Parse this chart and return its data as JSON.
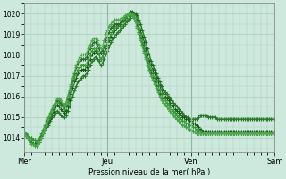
{
  "xlabel": "Pression niveau de la mer( hPa )",
  "ylim": [
    1013.3,
    1020.5
  ],
  "yticks": [
    1014,
    1015,
    1016,
    1017,
    1018,
    1019,
    1020
  ],
  "xtick_labels": [
    "Mer",
    "Jeu",
    "Ven",
    "Sam"
  ],
  "xtick_positions": [
    0,
    48,
    96,
    144
  ],
  "total_points": 145,
  "bg_color": "#cde8dc",
  "grid_color": "#aaccbc",
  "series": [
    {
      "values": [
        1014.2,
        1014.2,
        1014.1,
        1014.0,
        1014.0,
        1013.9,
        1013.9,
        1013.8,
        1013.9,
        1014.0,
        1014.1,
        1014.2,
        1014.4,
        1014.5,
        1014.6,
        1014.8,
        1015.0,
        1015.1,
        1015.2,
        1015.3,
        1015.2,
        1015.1,
        1015.0,
        1015.0,
        1015.1,
        1015.3,
        1015.5,
        1015.8,
        1016.0,
        1016.3,
        1016.5,
        1016.7,
        1016.8,
        1016.9,
        1017.0,
        1017.0,
        1017.1,
        1017.3,
        1017.5,
        1017.7,
        1017.8,
        1017.9,
        1017.8,
        1017.7,
        1017.5,
        1017.6,
        1017.8,
        1018.0,
        1018.2,
        1018.4,
        1018.6,
        1018.8,
        1018.9,
        1019.0,
        1019.1,
        1019.2,
        1019.3,
        1019.4,
        1019.5,
        1019.6,
        1019.7,
        1019.8,
        1019.9,
        1020.0,
        1020.0,
        1019.9,
        1019.7,
        1019.5,
        1019.2,
        1018.9,
        1018.6,
        1018.3,
        1018.0,
        1017.7,
        1017.5,
        1017.3,
        1017.1,
        1016.9,
        1016.7,
        1016.5,
        1016.3,
        1016.2,
        1016.1,
        1016.0,
        1015.9,
        1015.8,
        1015.7,
        1015.6,
        1015.5,
        1015.4,
        1015.3,
        1015.2,
        1015.1,
        1015.0,
        1015.0,
        1014.9,
        1014.9,
        1014.9,
        1014.9,
        1014.9,
        1015.0,
        1015.1,
        1015.1,
        1015.1,
        1015.1,
        1015.1,
        1015.0,
        1015.0,
        1015.0,
        1015.0,
        1015.0,
        1014.9,
        1014.9,
        1014.9,
        1014.9,
        1014.9,
        1014.9,
        1014.9,
        1014.9,
        1014.9,
        1014.9,
        1014.9,
        1014.9,
        1014.9,
        1014.9,
        1014.9,
        1014.9,
        1014.9,
        1014.9,
        1014.9,
        1014.9,
        1014.9,
        1014.9,
        1014.9,
        1014.9,
        1014.9,
        1014.9,
        1014.9,
        1014.9,
        1014.9,
        1014.9,
        1014.9,
        1014.9,
        1014.9,
        1014.9
      ],
      "color": "#2a7a2a",
      "lw": 1.0,
      "ls": "-",
      "marker": "+",
      "ms": 2.5,
      "mew": 0.8
    },
    {
      "values": [
        1014.2,
        1014.1,
        1014.0,
        1013.9,
        1013.8,
        1013.7,
        1013.7,
        1013.7,
        1013.8,
        1013.9,
        1014.1,
        1014.2,
        1014.4,
        1014.6,
        1014.7,
        1014.9,
        1015.1,
        1015.3,
        1015.5,
        1015.6,
        1015.5,
        1015.4,
        1015.3,
        1015.2,
        1015.3,
        1015.5,
        1015.8,
        1016.1,
        1016.4,
        1016.7,
        1016.9,
        1017.1,
        1017.2,
        1017.3,
        1017.3,
        1017.3,
        1017.4,
        1017.6,
        1017.8,
        1018.0,
        1018.1,
        1018.2,
        1018.1,
        1018.0,
        1017.8,
        1017.9,
        1018.1,
        1018.3,
        1018.5,
        1018.7,
        1018.9,
        1019.1,
        1019.2,
        1019.3,
        1019.4,
        1019.5,
        1019.6,
        1019.7,
        1019.8,
        1019.9,
        1020.0,
        1020.1,
        1020.1,
        1020.0,
        1019.9,
        1019.7,
        1019.5,
        1019.2,
        1018.9,
        1018.6,
        1018.3,
        1018.0,
        1017.7,
        1017.5,
        1017.3,
        1017.1,
        1016.9,
        1016.7,
        1016.5,
        1016.3,
        1016.1,
        1016.0,
        1015.9,
        1015.8,
        1015.7,
        1015.6,
        1015.5,
        1015.4,
        1015.3,
        1015.2,
        1015.1,
        1015.0,
        1015.0,
        1014.9,
        1014.9,
        1014.8,
        1014.8,
        1014.7,
        1014.7,
        1014.6,
        1014.5,
        1014.4,
        1014.4,
        1014.3,
        1014.3,
        1014.3,
        1014.3,
        1014.3,
        1014.3,
        1014.3,
        1014.3,
        1014.3,
        1014.3,
        1014.3,
        1014.3,
        1014.3,
        1014.3,
        1014.3,
        1014.3,
        1014.3,
        1014.3,
        1014.3,
        1014.3,
        1014.3,
        1014.3,
        1014.3,
        1014.3,
        1014.3,
        1014.3,
        1014.3,
        1014.3,
        1014.3,
        1014.3,
        1014.3,
        1014.3,
        1014.3,
        1014.3,
        1014.3,
        1014.3,
        1014.3,
        1014.3,
        1014.3,
        1014.3,
        1014.3,
        1014.3
      ],
      "color": "#1a5a1a",
      "lw": 0.8,
      "ls": "--",
      "marker": "+",
      "ms": 2.5,
      "mew": 0.8
    },
    {
      "values": [
        1014.3,
        1014.2,
        1014.1,
        1014.0,
        1014.0,
        1013.9,
        1013.9,
        1013.8,
        1013.9,
        1014.0,
        1014.2,
        1014.4,
        1014.6,
        1014.8,
        1015.0,
        1015.2,
        1015.4,
        1015.6,
        1015.7,
        1015.8,
        1015.7,
        1015.6,
        1015.5,
        1015.4,
        1015.5,
        1015.7,
        1016.0,
        1016.3,
        1016.6,
        1016.9,
        1017.1,
        1017.3,
        1017.4,
        1017.5,
        1017.5,
        1017.5,
        1017.6,
        1017.8,
        1018.0,
        1018.2,
        1018.3,
        1018.3,
        1018.2,
        1018.0,
        1017.8,
        1017.9,
        1018.1,
        1018.4,
        1018.6,
        1018.8,
        1019.0,
        1019.2,
        1019.3,
        1019.4,
        1019.4,
        1019.4,
        1019.5,
        1019.6,
        1019.7,
        1019.8,
        1019.9,
        1020.0,
        1020.0,
        1019.9,
        1019.8,
        1019.6,
        1019.3,
        1019.0,
        1018.7,
        1018.4,
        1018.1,
        1017.8,
        1017.5,
        1017.3,
        1017.1,
        1016.9,
        1016.7,
        1016.5,
        1016.3,
        1016.1,
        1015.9,
        1015.8,
        1015.7,
        1015.6,
        1015.5,
        1015.4,
        1015.3,
        1015.2,
        1015.1,
        1015.0,
        1014.9,
        1014.8,
        1014.8,
        1014.7,
        1014.7,
        1014.6,
        1014.6,
        1014.5,
        1014.5,
        1014.4,
        1014.4,
        1014.3,
        1014.3,
        1014.2,
        1014.2,
        1014.2,
        1014.2,
        1014.2,
        1014.2,
        1014.2,
        1014.2,
        1014.2,
        1014.2,
        1014.2,
        1014.2,
        1014.2,
        1014.2,
        1014.2,
        1014.2,
        1014.2,
        1014.2,
        1014.2,
        1014.2,
        1014.2,
        1014.2,
        1014.2,
        1014.2,
        1014.2,
        1014.2,
        1014.2,
        1014.2,
        1014.2,
        1014.2,
        1014.2,
        1014.2,
        1014.2,
        1014.2,
        1014.2,
        1014.2,
        1014.2,
        1014.2,
        1014.2,
        1014.2,
        1014.2,
        1014.2
      ],
      "color": "#3a9a3a",
      "lw": 0.8,
      "ls": "-",
      "marker": "+",
      "ms": 2.5,
      "mew": 0.8
    },
    {
      "values": [
        1014.2,
        1014.1,
        1014.0,
        1013.9,
        1013.8,
        1013.7,
        1013.7,
        1013.6,
        1013.7,
        1013.8,
        1014.0,
        1014.2,
        1014.4,
        1014.6,
        1014.8,
        1015.0,
        1015.2,
        1015.4,
        1015.6,
        1015.8,
        1015.8,
        1015.7,
        1015.6,
        1015.5,
        1015.6,
        1015.9,
        1016.2,
        1016.5,
        1016.8,
        1017.1,
        1017.4,
        1017.6,
        1017.7,
        1017.8,
        1017.8,
        1017.8,
        1017.9,
        1018.1,
        1018.3,
        1018.5,
        1018.6,
        1018.6,
        1018.5,
        1018.3,
        1018.1,
        1018.2,
        1018.4,
        1018.7,
        1018.9,
        1019.1,
        1019.3,
        1019.4,
        1019.5,
        1019.5,
        1019.5,
        1019.5,
        1019.6,
        1019.7,
        1019.8,
        1019.9,
        1020.0,
        1020.0,
        1019.9,
        1019.8,
        1019.6,
        1019.4,
        1019.1,
        1018.8,
        1018.5,
        1018.2,
        1017.9,
        1017.6,
        1017.3,
        1017.1,
        1016.9,
        1016.7,
        1016.5,
        1016.3,
        1016.1,
        1015.9,
        1015.7,
        1015.6,
        1015.5,
        1015.4,
        1015.3,
        1015.2,
        1015.1,
        1015.0,
        1014.9,
        1014.8,
        1014.7,
        1014.6,
        1014.6,
        1014.5,
        1014.5,
        1014.4,
        1014.4,
        1014.3,
        1014.3,
        1014.2,
        1014.2,
        1014.2,
        1014.2,
        1014.2,
        1014.2,
        1014.2,
        1014.2,
        1014.2,
        1014.2,
        1014.2,
        1014.2,
        1014.2,
        1014.2,
        1014.2,
        1014.2,
        1014.2,
        1014.2,
        1014.2,
        1014.2,
        1014.2,
        1014.2,
        1014.2,
        1014.2,
        1014.2,
        1014.2,
        1014.2,
        1014.2,
        1014.2,
        1014.2,
        1014.2,
        1014.2,
        1014.2,
        1014.2,
        1014.2,
        1014.2,
        1014.2,
        1014.2,
        1014.2,
        1014.2,
        1014.2,
        1014.2,
        1014.2,
        1014.2,
        1014.2,
        1014.2
      ],
      "color": "#2d6b2d",
      "lw": 0.8,
      "ls": "-",
      "marker": "+",
      "ms": 2.5,
      "mew": 0.8
    },
    {
      "values": [
        1014.2,
        1014.1,
        1014.0,
        1013.9,
        1013.7,
        1013.7,
        1013.6,
        1013.6,
        1013.7,
        1013.8,
        1014.0,
        1014.2,
        1014.4,
        1014.6,
        1014.9,
        1015.1,
        1015.3,
        1015.5,
        1015.7,
        1015.9,
        1015.9,
        1015.8,
        1015.7,
        1015.6,
        1015.7,
        1016.0,
        1016.3,
        1016.6,
        1016.9,
        1017.2,
        1017.5,
        1017.7,
        1017.9,
        1018.0,
        1018.0,
        1018.0,
        1018.1,
        1018.3,
        1018.5,
        1018.7,
        1018.8,
        1018.8,
        1018.7,
        1018.5,
        1018.3,
        1018.4,
        1018.7,
        1019.0,
        1019.2,
        1019.4,
        1019.5,
        1019.6,
        1019.7,
        1019.7,
        1019.7,
        1019.7,
        1019.8,
        1019.8,
        1019.9,
        1019.9,
        1020.0,
        1020.0,
        1019.9,
        1019.8,
        1019.6,
        1019.3,
        1019.0,
        1018.7,
        1018.4,
        1018.1,
        1017.8,
        1017.5,
        1017.2,
        1017.0,
        1016.8,
        1016.6,
        1016.4,
        1016.2,
        1016.0,
        1015.8,
        1015.7,
        1015.6,
        1015.5,
        1015.4,
        1015.3,
        1015.2,
        1015.1,
        1015.0,
        1014.9,
        1014.8,
        1014.7,
        1014.6,
        1014.6,
        1014.5,
        1014.5,
        1014.4,
        1014.4,
        1014.3,
        1014.3,
        1014.2,
        1014.2,
        1014.2,
        1014.2,
        1014.2,
        1014.2,
        1014.2,
        1014.2,
        1014.2,
        1014.2,
        1014.2,
        1014.2,
        1014.2,
        1014.2,
        1014.2,
        1014.2,
        1014.2,
        1014.2,
        1014.2,
        1014.2,
        1014.2,
        1014.2,
        1014.2,
        1014.2,
        1014.2,
        1014.2,
        1014.2,
        1014.2,
        1014.2,
        1014.2,
        1014.2,
        1014.2,
        1014.2,
        1014.2,
        1014.2,
        1014.2,
        1014.2,
        1014.2,
        1014.2,
        1014.2,
        1014.2,
        1014.2,
        1014.2,
        1014.2,
        1014.2,
        1014.2
      ],
      "color": "#4aaa4a",
      "lw": 0.8,
      "ls": "-",
      "marker": "+",
      "ms": 2.5,
      "mew": 0.8
    }
  ]
}
